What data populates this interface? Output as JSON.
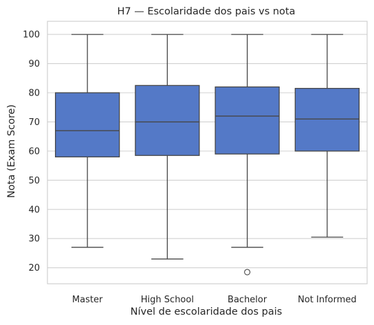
{
  "chart_data": {
    "type": "box",
    "title": "H7 — Escolaridade dos pais vs nota",
    "xlabel": "Nível de escolaridade dos pais",
    "ylabel": "Nota (Exam Score)",
    "categories": [
      "Master",
      "High School",
      "Bachelor",
      "Not Informed"
    ],
    "boxes": [
      {
        "category": "Master",
        "whisker_low": 27,
        "q1": 58,
        "median": 67,
        "q3": 80,
        "whisker_high": 100,
        "outliers": []
      },
      {
        "category": "High School",
        "whisker_low": 23,
        "q1": 58.5,
        "median": 70,
        "q3": 82.5,
        "whisker_high": 100,
        "outliers": []
      },
      {
        "category": "Bachelor",
        "whisker_low": 27,
        "q1": 59,
        "median": 72,
        "q3": 82,
        "whisker_high": 100,
        "outliers": [
          18.5
        ]
      },
      {
        "category": "Not Informed",
        "whisker_low": 30.5,
        "q1": 60,
        "median": 71,
        "q3": 81.5,
        "whisker_high": 100,
        "outliers": []
      }
    ],
    "yticks": [
      20,
      30,
      40,
      50,
      60,
      70,
      80,
      90,
      100
    ],
    "ylim": [
      14.5,
      104.5
    ],
    "grid": true,
    "colors": {
      "box_fill": "#5479c7",
      "box_line": "#464646",
      "grid": "#d0d0d0",
      "frame": "#cccccc"
    }
  }
}
